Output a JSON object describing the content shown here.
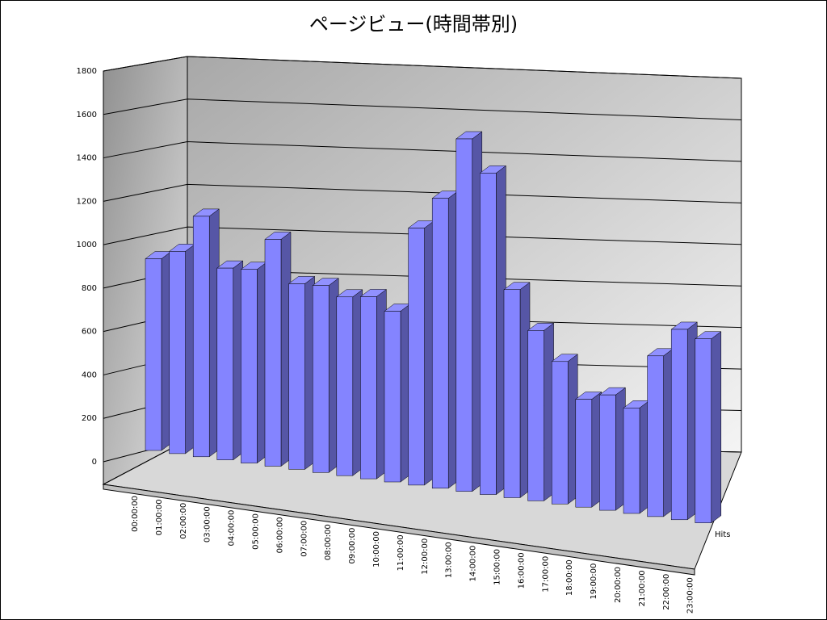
{
  "chart_data": {
    "type": "bar3d",
    "title": "ページビュー(時間帯別)",
    "categories": [
      "00:00:00",
      "01:00:00",
      "02:00:00",
      "03:00:00",
      "04:00:00",
      "05:00:00",
      "06:00:00",
      "07:00:00",
      "08:00:00",
      "09:00:00",
      "10:00:00",
      "11:00:00",
      "12:00:00",
      "13:00:00",
      "14:00:00",
      "15:00:00",
      "16:00:00",
      "17:00:00",
      "18:00:00",
      "19:00:00",
      "20:00:00",
      "21:00:00",
      "22:00:00",
      "23:00:00"
    ],
    "series": [
      {
        "name": "Hits",
        "color": "#8484ff",
        "values": [
          950,
          980,
          1140,
          890,
          880,
          1010,
          810,
          800,
          750,
          750,
          690,
          1020,
          1130,
          1350,
          1210,
          770,
          620,
          510,
          380,
          400,
          360,
          540,
          630,
          600
        ]
      }
    ],
    "ylim": [
      0,
      1800
    ],
    "yticks": [
      0,
      200,
      400,
      600,
      800,
      1000,
      1200,
      1400,
      1600,
      1800
    ],
    "grid": true
  }
}
